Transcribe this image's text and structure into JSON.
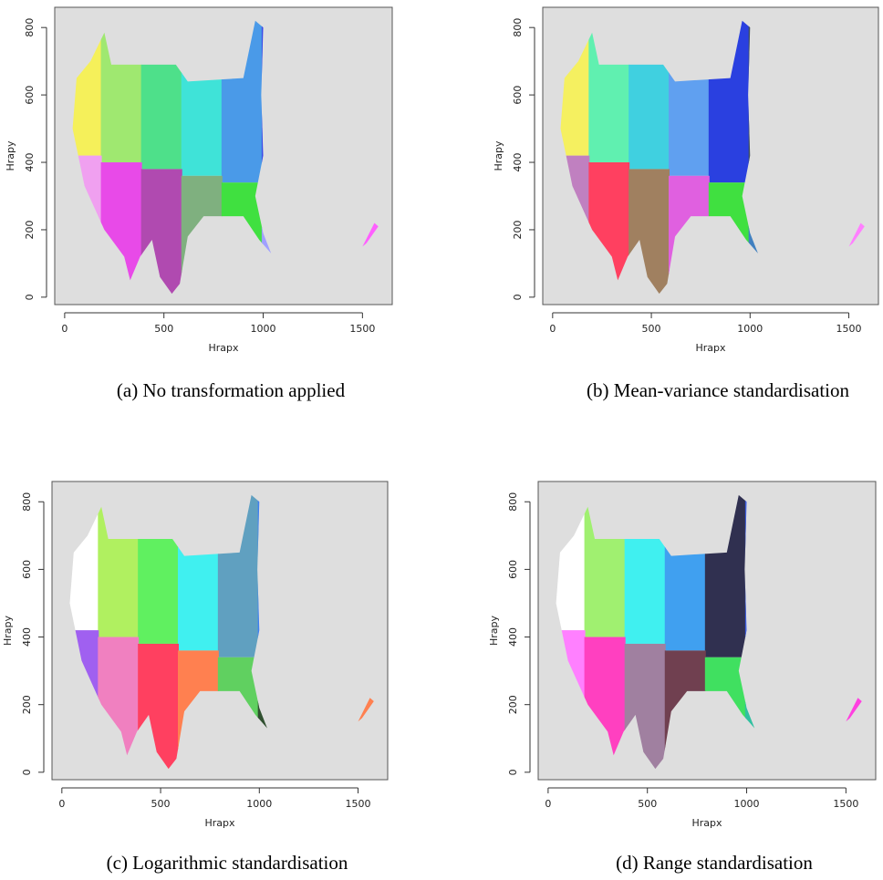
{
  "chart_data": [
    {
      "type": "map",
      "caption": "(a) No transformation applied",
      "xlabel": "Hrapx",
      "ylabel": "Hrapy",
      "xlim": [
        -50,
        1650
      ],
      "ylim": [
        -22,
        860
      ],
      "xticks": [
        0,
        500,
        1000,
        1500
      ],
      "yticks": [
        0,
        200,
        400,
        600,
        800
      ],
      "colors": [
        "#f5f05a",
        "#9fe870",
        "#4ee08a",
        "#3fe3d8",
        "#4a9ae8",
        "#3a4ae8",
        "#2a2a6a",
        "#e83a4a",
        "#f0a0f0",
        "#e84ae8",
        "#b04ab0",
        "#7fb07f",
        "#40e040",
        "#a0a0ff",
        "#806060",
        "#ff60ff"
      ]
    },
    {
      "type": "map",
      "caption": "(b) Mean-variance standardisation",
      "xlabel": "Hrapx",
      "ylabel": "Hrapy",
      "xlim": [
        -50,
        1650
      ],
      "ylim": [
        -22,
        860
      ],
      "xticks": [
        0,
        500,
        1000,
        1500
      ],
      "yticks": [
        0,
        200,
        400,
        600,
        800
      ],
      "colors": [
        "#f5f060",
        "#60f0b0",
        "#40d0e0",
        "#60a0f0",
        "#2a40e0",
        "#405060",
        "#a060e0",
        "#e04a80",
        "#c080c0",
        "#ff4060",
        "#a08060",
        "#e060e0",
        "#40e040",
        "#4080c0",
        "#9070a0",
        "#ff80ff"
      ]
    },
    {
      "type": "map",
      "caption": "(c) Logarithmic standardisation",
      "xlabel": "Hrapx",
      "ylabel": "Hrapy",
      "xlim": [
        -50,
        1650
      ],
      "ylim": [
        -22,
        860
      ],
      "xticks": [
        0,
        500,
        1000,
        1500
      ],
      "yticks": [
        0,
        200,
        400,
        600,
        800
      ],
      "colors": [
        "#ffffff",
        "#b0f060",
        "#60f060",
        "#40f0f0",
        "#60a0c0",
        "#4080f0",
        "#2a4ab0",
        "#404060",
        "#a060f0",
        "#f080c0",
        "#ff4060",
        "#ff8050",
        "#60d060",
        "#305030",
        "#e080f0",
        "#ff8050"
      ]
    },
    {
      "type": "map",
      "caption": "(d) Range standardisation",
      "xlabel": "Hrapx",
      "ylabel": "Hrapy",
      "xlim": [
        -50,
        1650
      ],
      "ylim": [
        -22,
        860
      ],
      "xticks": [
        0,
        500,
        1000,
        1500
      ],
      "yticks": [
        0,
        200,
        400,
        600,
        800
      ],
      "colors": [
        "#ffffff",
        "#a0f070",
        "#40f0f0",
        "#40a0f0",
        "#303050",
        "#4060e0",
        "#8060f0",
        "#c060e0",
        "#ff80ff",
        "#ff40c0",
        "#a080a0",
        "#704050",
        "#40e060",
        "#30c0a0",
        "#c070a0",
        "#ff40e0"
      ]
    }
  ]
}
